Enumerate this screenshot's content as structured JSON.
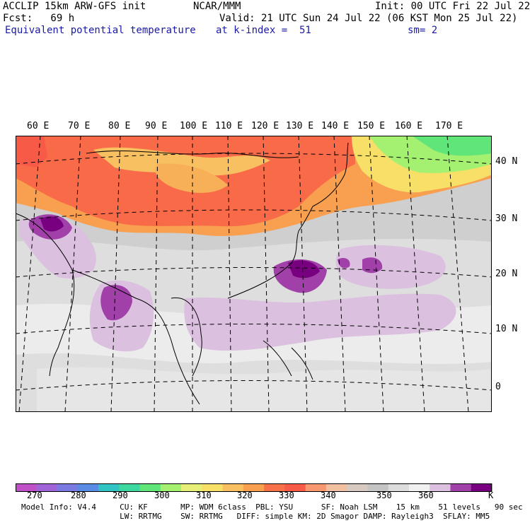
{
  "header": {
    "line1_left": "ACCLIP 15km ARW-GFS init",
    "line1_center": "NCAR/MMM",
    "line1_right": "Init: 00 UTC Fri 22 Jul 22",
    "line2_left": "Fcst:   69 h",
    "line2_right": "Valid: 21 UTC Sun 24 Jul 22 (06 KST Mon 25 Jul 22)",
    "line3_left": "Equivalent potential temperature",
    "line3_center": "at k-index =  51",
    "line3_right": "sm= 2"
  },
  "map": {
    "lon_labels": [
      "60 E",
      "70 E",
      "80 E",
      "90 E",
      "100 E",
      "110 E",
      "120 E",
      "130 E",
      "140 E",
      "150 E",
      "160 E",
      "170 E"
    ],
    "lat_labels": [
      "40 N",
      "30 N",
      "20 N",
      "10 N",
      "0"
    ]
  },
  "colorbar": {
    "colors": [
      "#c050c8",
      "#a064d8",
      "#7a7ae0",
      "#5a8ce6",
      "#30c4c4",
      "#3cd8a0",
      "#60e678",
      "#a4f070",
      "#e6f078",
      "#f8e068",
      "#f8c060",
      "#f8a050",
      "#f87048",
      "#f85a48",
      "#f89870",
      "#f0c0a0",
      "#d8cac0",
      "#c4c4c4",
      "#dcdcdc",
      "#f0f0f0",
      "#dcc0e0",
      "#a040a8",
      "#780080"
    ],
    "tick_labels": [
      "270",
      "280",
      "290",
      "300",
      "310",
      "320",
      "330",
      "340",
      "350",
      "360",
      "K"
    ]
  },
  "footer": {
    "line1": "Model Info: V4.4     CU: KF       MP: WDM 6class  PBL: YSU      SF: Noah LSM    15 km    51 levels   90 sec",
    "line2": "                     LW: RRTMG    SW: RRTMG   DIFF: simple KM: 2D Smagor DAMP: Rayleigh3  SFLAY: MM5"
  }
}
